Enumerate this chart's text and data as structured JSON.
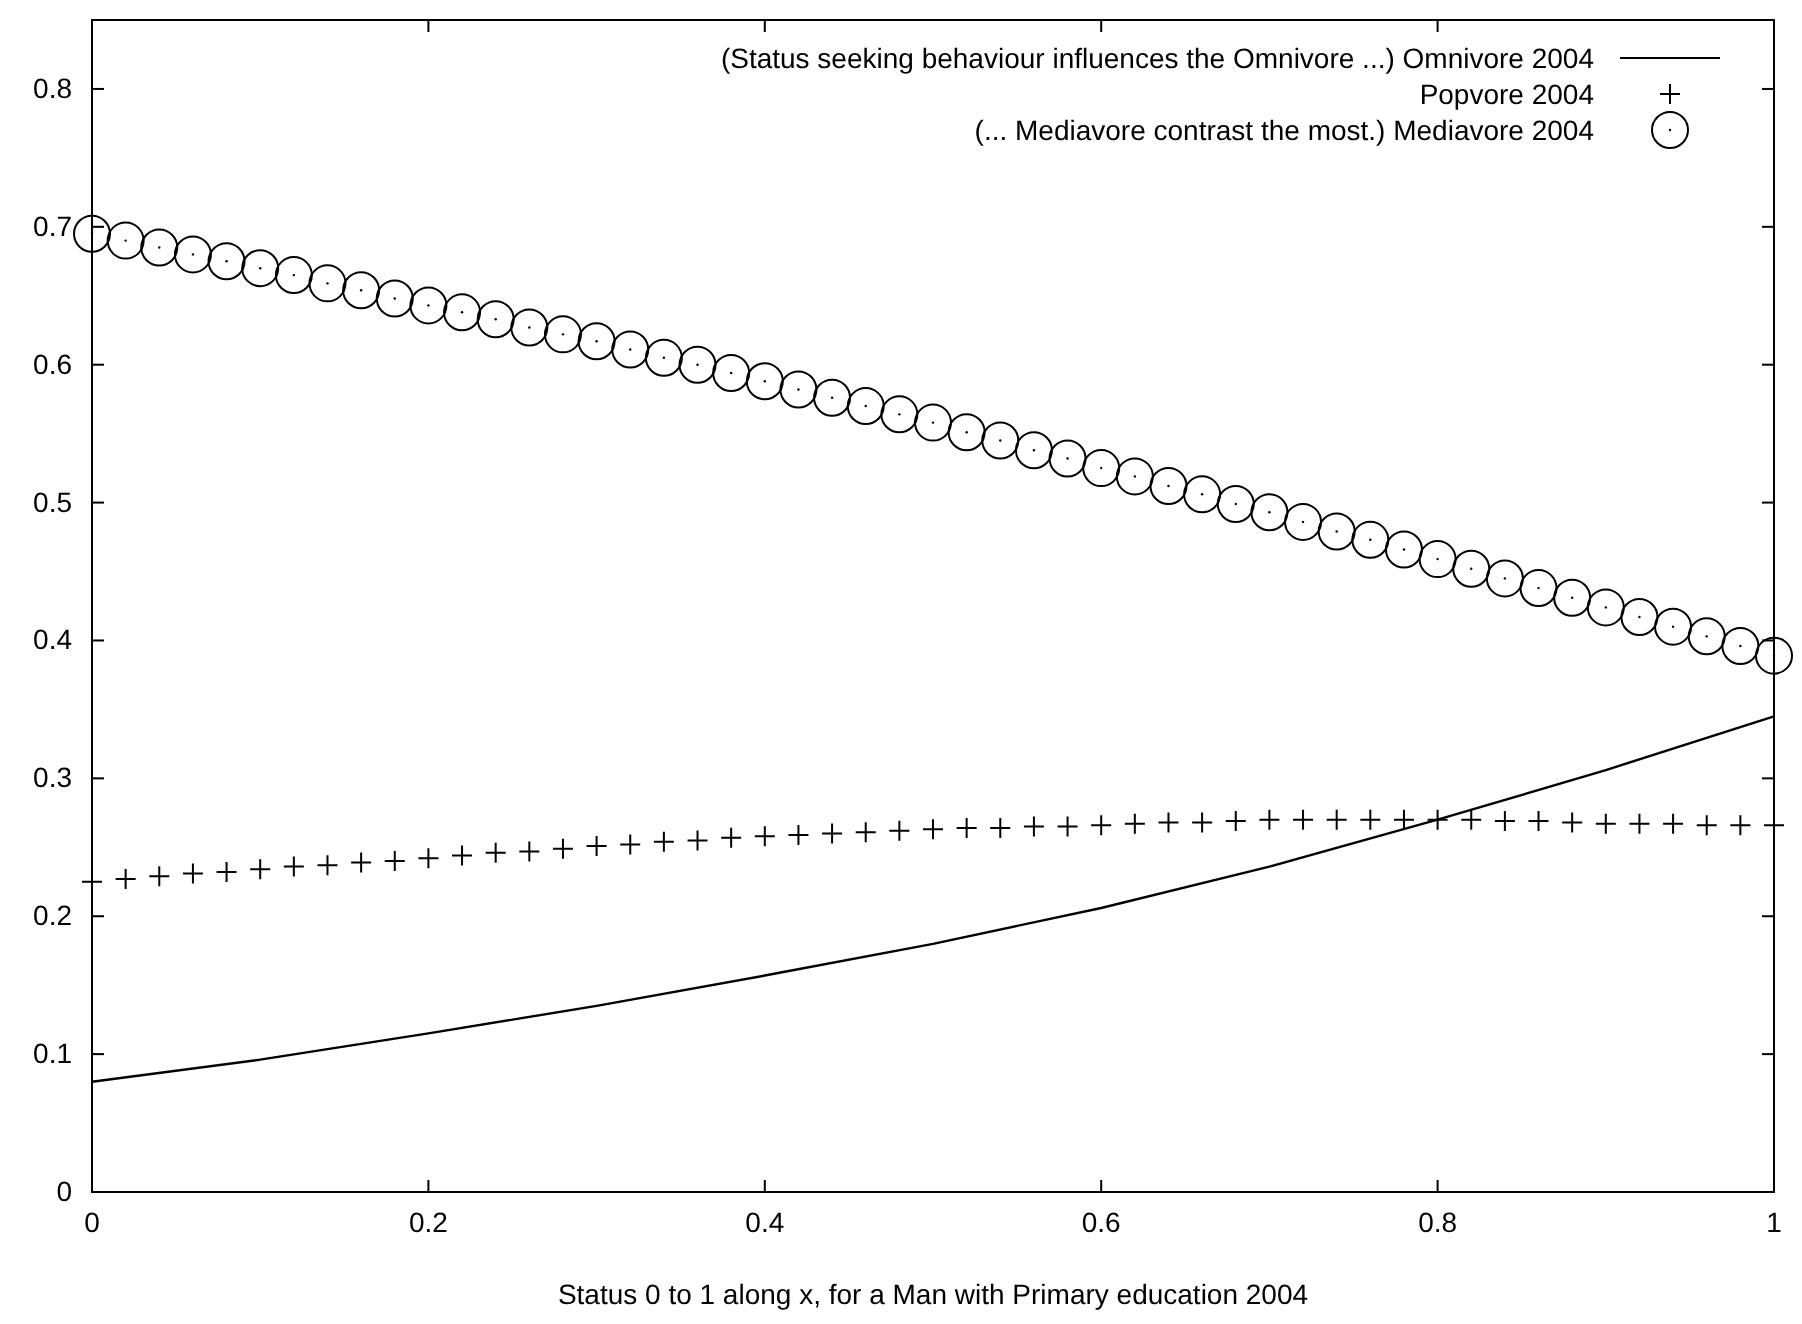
{
  "chart_data": {
    "type": "scatter",
    "xlabel": "Status 0 to 1 along x, for a Man with Primary education 2004",
    "xlim": [
      0,
      1
    ],
    "xticks": [
      0,
      0.2,
      0.4,
      0.6,
      0.8,
      {
        "value": 1,
        "label": "1"
      }
    ],
    "ylim": [
      0,
      0.85
    ],
    "yticks": [
      0,
      0.1,
      0.2,
      0.3,
      0.4,
      0.5,
      0.6,
      0.7,
      0.8
    ],
    "grid": false,
    "legend": "top right",
    "series": [
      {
        "name": "(Status seeking behaviour influences the Omnivore ...) Omnivore 2004",
        "type": "line",
        "color": "#000000",
        "line_style": "solid",
        "x": [
          0,
          0.1,
          0.2,
          0.3,
          0.4,
          0.5,
          0.6,
          0.7,
          0.8,
          0.9,
          1
        ],
        "values": [
          0.08,
          0.096,
          0.115,
          0.135,
          0.157,
          0.18,
          0.206,
          0.236,
          0.27,
          0.306,
          0.345
        ]
      },
      {
        "name": "Popvore 2004",
        "marker": "cross",
        "color": "#000000",
        "x": [
          0,
          0.02,
          0.04,
          0.06,
          0.08,
          0.1,
          0.12,
          0.14,
          0.16,
          0.18,
          0.2,
          0.22,
          0.24,
          0.26,
          0.28,
          0.3,
          0.32,
          0.34,
          0.36,
          0.38,
          0.4,
          0.42,
          0.44,
          0.46,
          0.48,
          0.5,
          0.52,
          0.54,
          0.56,
          0.58,
          0.6,
          0.62,
          0.64,
          0.66,
          0.68,
          0.7,
          0.72,
          0.74,
          0.76,
          0.78,
          0.8,
          0.82,
          0.84,
          0.86,
          0.88,
          0.9,
          0.92,
          0.94,
          0.96,
          0.98,
          1
        ],
        "values": [
          0.225,
          0.227,
          0.229,
          0.231,
          0.232,
          0.234,
          0.236,
          0.237,
          0.239,
          0.24,
          0.242,
          0.244,
          0.246,
          0.247,
          0.249,
          0.251,
          0.252,
          0.254,
          0.255,
          0.257,
          0.258,
          0.259,
          0.26,
          0.261,
          0.262,
          0.263,
          0.264,
          0.264,
          0.265,
          0.265,
          0.266,
          0.267,
          0.268,
          0.268,
          0.269,
          0.27,
          0.27,
          0.27,
          0.27,
          0.27,
          0.27,
          0.27,
          0.269,
          0.269,
          0.268,
          0.267,
          0.267,
          0.267,
          0.266,
          0.266,
          0.266
        ]
      },
      {
        "name": "(... Mediavore contrast the most.) Mediavore 2004",
        "marker": "circle",
        "color": "#000000",
        "x": [
          0,
          0.02,
          0.04,
          0.06,
          0.08,
          0.1,
          0.12,
          0.14,
          0.16,
          0.18,
          0.2,
          0.22,
          0.24,
          0.26,
          0.28,
          0.3,
          0.32,
          0.34,
          0.36,
          0.38,
          0.4,
          0.42,
          0.44,
          0.46,
          0.48,
          0.5,
          0.52,
          0.54,
          0.56,
          0.58,
          0.6,
          0.62,
          0.64,
          0.66,
          0.68,
          0.7,
          0.72,
          0.74,
          0.76,
          0.78,
          0.8,
          0.82,
          0.84,
          0.86,
          0.88,
          0.9,
          0.92,
          0.94,
          0.96,
          0.98,
          1
        ],
        "values": [
          0.695,
          0.69,
          0.685,
          0.68,
          0.675,
          0.67,
          0.665,
          0.659,
          0.654,
          0.648,
          0.643,
          0.638,
          0.633,
          0.627,
          0.622,
          0.617,
          0.611,
          0.605,
          0.6,
          0.594,
          0.588,
          0.582,
          0.576,
          0.57,
          0.564,
          0.558,
          0.551,
          0.545,
          0.538,
          0.532,
          0.525,
          0.519,
          0.512,
          0.506,
          0.499,
          0.493,
          0.486,
          0.479,
          0.473,
          0.466,
          0.459,
          0.452,
          0.445,
          0.438,
          0.431,
          0.424,
          0.417,
          0.41,
          0.403,
          0.396,
          0.389
        ]
      }
    ]
  }
}
